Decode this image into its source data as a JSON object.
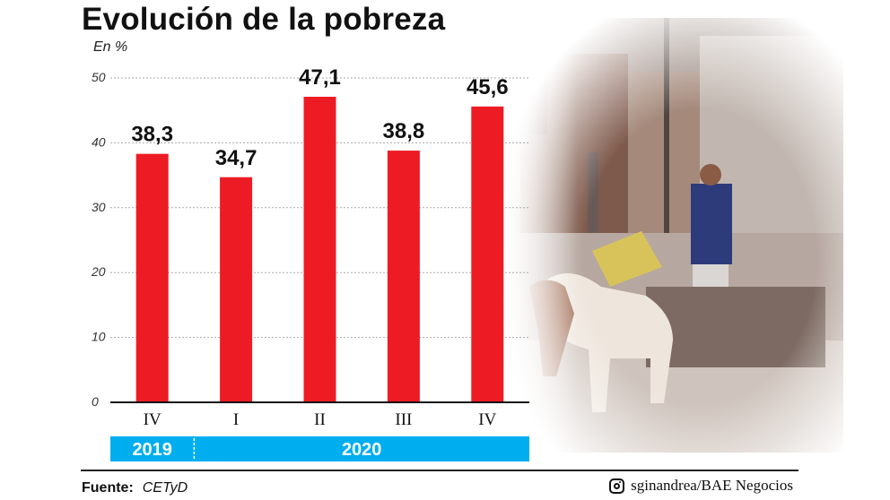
{
  "title": "Evolución de la pobreza",
  "unit_label": "En %",
  "chart_data": {
    "type": "bar",
    "title": "Evolución de la pobreza",
    "ylabel": "En %",
    "xlabel": "",
    "ylim": [
      0,
      50
    ],
    "yticks": [
      0,
      10,
      20,
      30,
      40,
      50
    ],
    "grid": true,
    "categories": [
      "IV",
      "I",
      "II",
      "III",
      "IV"
    ],
    "years": [
      {
        "label": "2019",
        "from": 0,
        "to": 0
      },
      {
        "label": "2020",
        "from": 1,
        "to": 4
      }
    ],
    "values": [
      38.3,
      34.7,
      47.1,
      38.8,
      45.6
    ],
    "value_labels": [
      "38,3",
      "34,7",
      "47,1",
      "38,8",
      "45,6"
    ],
    "bar_color": "#ed1c24",
    "year_band_color": "#00aeef"
  },
  "footer": {
    "source_label": "Fuente:",
    "source_value": "CETyD",
    "credit": "sginandrea/BAE Negocios",
    "credit_icon": "instagram-icon"
  }
}
